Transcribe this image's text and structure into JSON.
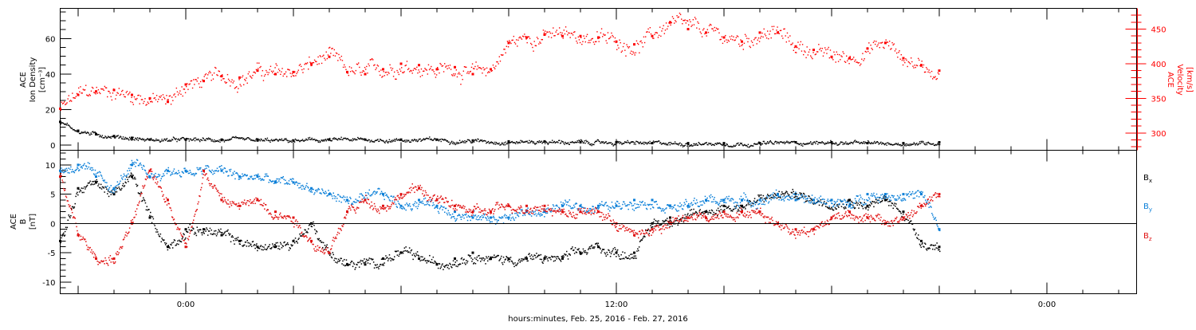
{
  "chart_data": [
    {
      "type": "scatter",
      "panel": "plasma",
      "ylabel_left": [
        "ACE",
        "Ion Density",
        "[cm⁻³]"
      ],
      "ylabel_right": [
        "ACE",
        "Velocity",
        "[km/s]"
      ],
      "ylim_left": [
        -3,
        77
      ],
      "ylim_right": [
        275,
        480
      ],
      "left_ticks": [
        "0",
        "20",
        "40",
        "60"
      ],
      "right_ticks": [
        "300",
        "350",
        "400",
        "450"
      ],
      "grid": false,
      "colors": {
        "density": "#000000",
        "velocity": "#ff0000"
      },
      "series": [
        {
          "axis": "left",
          "color": "#000000",
          "x": [
            -3.5,
            -3.0,
            -2.5,
            -2.0,
            -1.5,
            -1.0,
            0,
            1,
            2,
            3,
            4,
            5,
            6,
            7,
            8,
            9,
            10,
            11,
            12,
            13,
            14,
            15,
            16,
            17,
            18,
            19,
            20,
            21
          ],
          "y": [
            13,
            8,
            6,
            5,
            4,
            3,
            3,
            3,
            2.5,
            2.5,
            3,
            3,
            3,
            3,
            2.5,
            2,
            2,
            1.5,
            1.5,
            1,
            1,
            1,
            1,
            1.5,
            1.5,
            1,
            1,
            1.5
          ]
        },
        {
          "axis": "right",
          "color": "#ff0000",
          "x": [
            -3.5,
            -3.0,
            -2.5,
            -2.0,
            -1.5,
            -1.0,
            -0.5,
            0,
            0.5,
            1,
            1.5,
            2,
            2.5,
            3,
            3.5,
            4,
            4.5,
            5,
            5.5,
            6,
            6.5,
            7,
            7.5,
            8,
            8.5,
            9,
            9.5,
            10,
            10.5,
            11,
            11.5,
            12,
            12.5,
            13,
            13.5,
            14,
            14.5,
            15,
            15.5,
            16,
            16.5,
            17,
            17.5,
            18,
            18.5,
            19,
            19.5,
            20,
            20.5,
            21
          ],
          "y": [
            335,
            355,
            360,
            362,
            355,
            350,
            345,
            370,
            375,
            382,
            380,
            390,
            385,
            388,
            400,
            410,
            388,
            385,
            392,
            400,
            398,
            392,
            395,
            385,
            392,
            430,
            438,
            442,
            440,
            440,
            438,
            432,
            428,
            440,
            460,
            450,
            445,
            438,
            432,
            445,
            445,
            425,
            420,
            410,
            408,
            422,
            430,
            408,
            398,
            390
          ]
        }
      ]
    },
    {
      "type": "scatter",
      "panel": "magnetic",
      "ylabel_left": [
        "ACE",
        "B",
        "[nT]"
      ],
      "ylim": [
        -12,
        12.5
      ],
      "left_ticks": [
        "10",
        "5",
        "0",
        "-5",
        "-10"
      ],
      "zero_line": true,
      "grid": false,
      "series": [
        {
          "name": "Bx",
          "sub": "x",
          "color": "#000000",
          "x": [
            -3.5,
            -3.0,
            -2.5,
            -2.0,
            -1.5,
            -1.0,
            -0.5,
            0,
            0.5,
            1,
            1.5,
            2,
            2.5,
            3,
            3.5,
            4,
            4.5,
            5,
            5.5,
            6,
            6.5,
            7,
            7.5,
            8,
            8.5,
            9,
            9.5,
            10,
            10.5,
            11,
            11.5,
            12,
            12.5,
            13,
            13.5,
            14,
            14.5,
            15,
            15.5,
            16,
            16.5,
            17,
            17.5,
            18,
            18.5,
            19,
            19.5,
            20,
            20.5,
            21
          ],
          "y": [
            -3,
            6,
            7,
            5,
            8,
            1,
            -4,
            -1,
            -1,
            -2,
            -3,
            -4,
            -4,
            -3,
            0,
            -5,
            -7,
            -7,
            -6,
            -5,
            -6,
            -7,
            -6,
            -5,
            -6,
            -6,
            -6,
            -6,
            -6,
            -5,
            -4,
            -5,
            -5,
            0,
            1,
            1,
            2,
            3,
            3,
            4,
            5,
            5,
            4,
            4,
            4,
            3,
            4,
            2,
            -3,
            -4
          ]
        },
        {
          "name": "By",
          "sub": "y",
          "color": "#0a7fd8",
          "x": [
            -3.5,
            -3.0,
            -2.5,
            -2.0,
            -1.5,
            -1.0,
            -0.5,
            0,
            0.5,
            1,
            1.5,
            2,
            2.5,
            3,
            3.5,
            4,
            4.5,
            5,
            5.5,
            6,
            6.5,
            7,
            7.5,
            8,
            8.5,
            9,
            9.5,
            10,
            10.5,
            11,
            11.5,
            12,
            12.5,
            13,
            13.5,
            14,
            14.5,
            15,
            15.5,
            16,
            16.5,
            17,
            17.5,
            18,
            18.5,
            19,
            19.5,
            20,
            20.5,
            21
          ],
          "y": [
            9,
            10,
            8,
            6,
            10,
            8,
            9,
            9,
            9,
            9,
            8,
            8,
            7,
            7,
            6,
            5,
            4,
            4,
            5,
            3,
            4,
            3,
            2,
            1,
            1,
            1,
            2,
            2,
            3,
            3,
            3,
            3,
            4,
            4,
            3,
            3,
            4,
            4,
            4,
            4,
            5,
            4,
            4,
            4,
            3,
            5,
            5,
            5,
            5,
            -1
          ]
        },
        {
          "name": "Bz",
          "sub": "z",
          "color": "#e01010",
          "x": [
            -3.5,
            -3.0,
            -2.5,
            -2.0,
            -1.5,
            -1.0,
            -0.5,
            0,
            0.5,
            1,
            1.5,
            2,
            2.5,
            3,
            3.5,
            4,
            4.5,
            5,
            5.5,
            6,
            6.5,
            7,
            7.5,
            8,
            8.5,
            9,
            9.5,
            10,
            10.5,
            11,
            11.5,
            12,
            12.5,
            13,
            13.5,
            14,
            14.5,
            15,
            15.5,
            16,
            16.5,
            17,
            17.5,
            18,
            18.5,
            19,
            19.5,
            20,
            20.5,
            21
          ],
          "y": [
            8,
            -2,
            -6,
            -6,
            0,
            9,
            4,
            -4,
            9,
            4,
            3,
            4,
            2,
            1,
            -3,
            -5,
            2,
            4,
            3,
            5,
            6,
            4,
            3,
            2,
            2,
            3,
            3,
            3,
            2,
            2,
            2,
            0,
            -2,
            -1,
            0,
            1,
            1,
            2,
            2,
            2,
            0,
            -1,
            -1,
            1,
            2,
            1,
            0,
            1,
            3,
            5
          ]
        }
      ]
    }
  ],
  "x_axis": {
    "title": "hours:minutes, Feb. 25, 2016 - Feb. 27, 2016",
    "xlim_hours": [
      -3.5,
      26.5
    ],
    "major": [
      {
        "hour": 0,
        "label": "0:00"
      },
      {
        "hour": 12,
        "label": "12:00"
      },
      {
        "hour": 24,
        "label": "0:00"
      }
    ]
  },
  "legend": [
    {
      "letter": "B",
      "sub": "x",
      "color": "#000000"
    },
    {
      "letter": "B",
      "sub": "y",
      "color": "#0a7fd8"
    },
    {
      "letter": "B",
      "sub": "z",
      "color": "#e01010"
    }
  ]
}
